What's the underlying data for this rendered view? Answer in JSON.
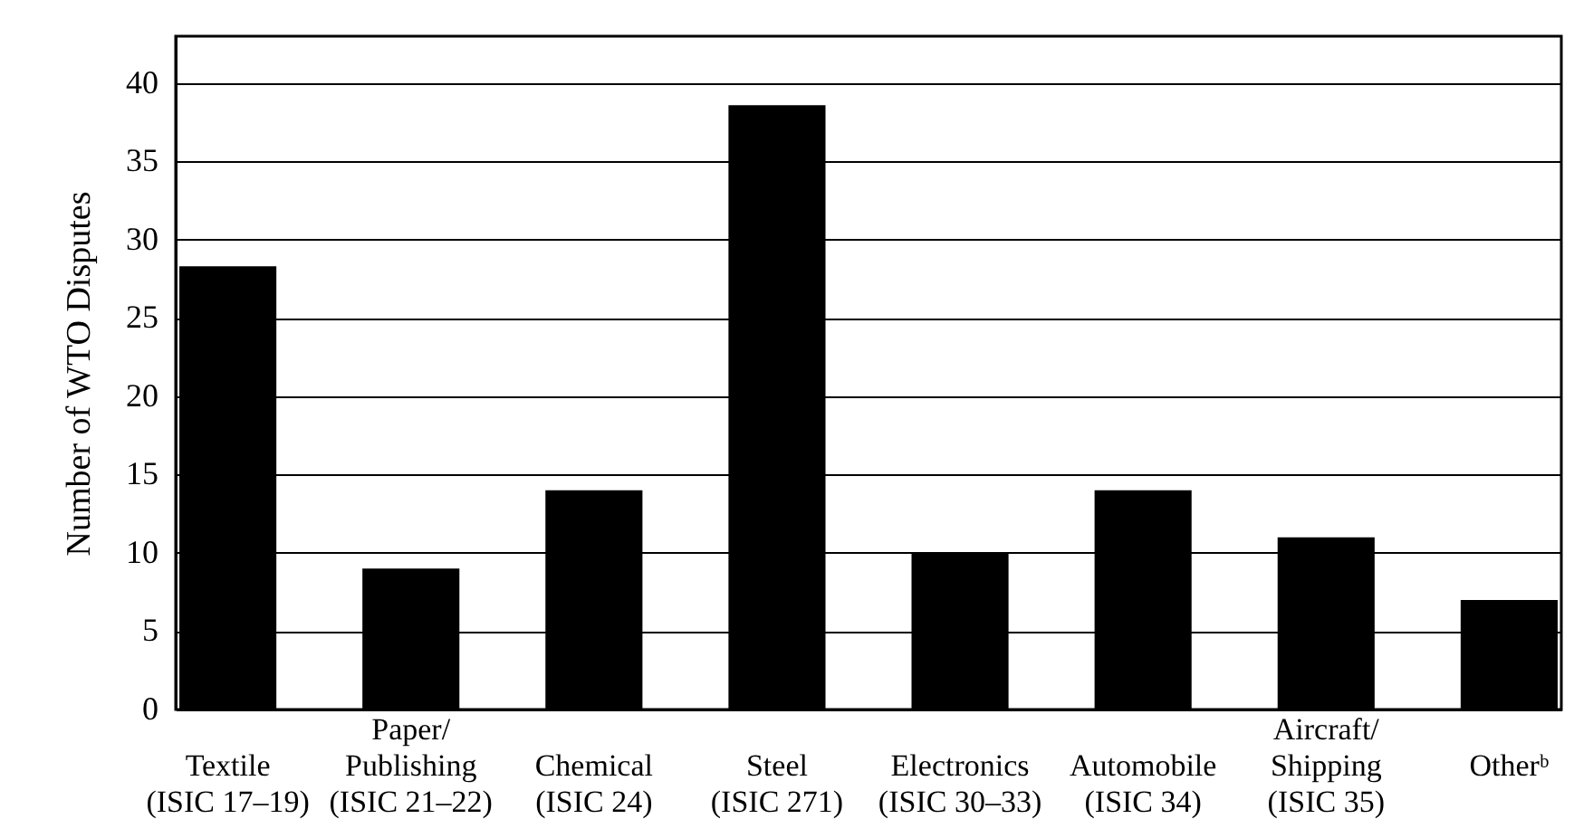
{
  "chart_data": {
    "type": "bar",
    "ylabel": "Number of WTO Disputes",
    "categories": [
      "Textile\n(ISIC 17–19)",
      "Paper/\nPublishing\n(ISIC 21–22)",
      "Chemical\n(ISIC 24)",
      "Steel\n(ISIC 271)",
      "Electronics\n(ISIC 30–33)",
      "Automobile\n(ISIC 34)",
      "Aircraft/\nShipping\n(ISIC 35)",
      "Otherᵇ"
    ],
    "values": [
      28.3,
      9,
      14,
      38.6,
      10,
      14,
      11,
      7
    ],
    "color": "#000000",
    "ylim": [
      0,
      43
    ],
    "yticks": [
      0,
      5,
      10,
      15,
      20,
      25,
      30,
      35,
      40
    ],
    "grid": "y"
  }
}
